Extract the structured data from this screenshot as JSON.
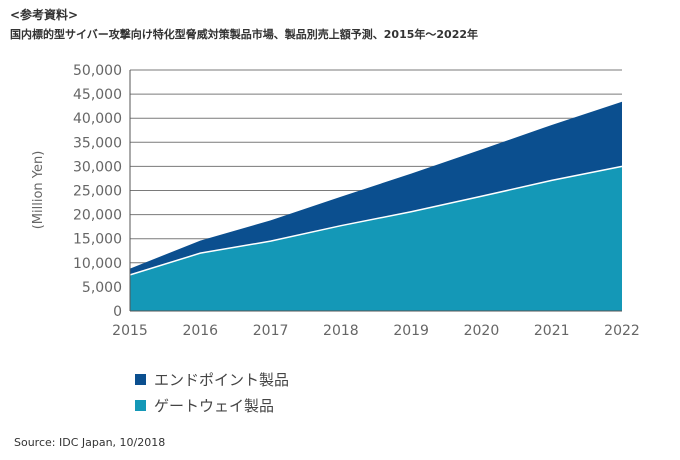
{
  "header": {
    "ref_note": "<参考資料>",
    "title": "国内標的型サイバー攻撃向け特化型脅威対策製品市場、製品別売上額予測、2015年～2022年"
  },
  "source": "Source: IDC Japan, 10/2018",
  "colors": {
    "endpoint": "#0b4f8f",
    "gateway": "#1498b7",
    "grid": "#7a7a7a",
    "axis": "#555555"
  },
  "chart_data": {
    "type": "area",
    "stacked": true,
    "title": "",
    "xlabel": "",
    "ylabel": "(Million Yen)",
    "x": [
      2015,
      2016,
      2017,
      2018,
      2019,
      2020,
      2021,
      2022
    ],
    "x_tick_labels": [
      "2015",
      "2016",
      "2017",
      "2018",
      "2019",
      "2020",
      "2021",
      "2022"
    ],
    "y_tick_labels": [
      "0",
      "5,000",
      "10,000",
      "15,000",
      "20,000",
      "25,000",
      "30,000",
      "35,000",
      "40,000",
      "45,000",
      "50,000"
    ],
    "ylim": [
      0,
      50000
    ],
    "grid": true,
    "legend_position": "bottom-left",
    "series": [
      {
        "name": "ゲートウェイ製品",
        "values": [
          7500,
          12000,
          14500,
          17700,
          20600,
          23800,
          27100,
          30000
        ]
      },
      {
        "name": "エンドポイント製品",
        "values": [
          1300,
          2600,
          4300,
          6000,
          7900,
          9700,
          11500,
          13400
        ]
      }
    ]
  }
}
